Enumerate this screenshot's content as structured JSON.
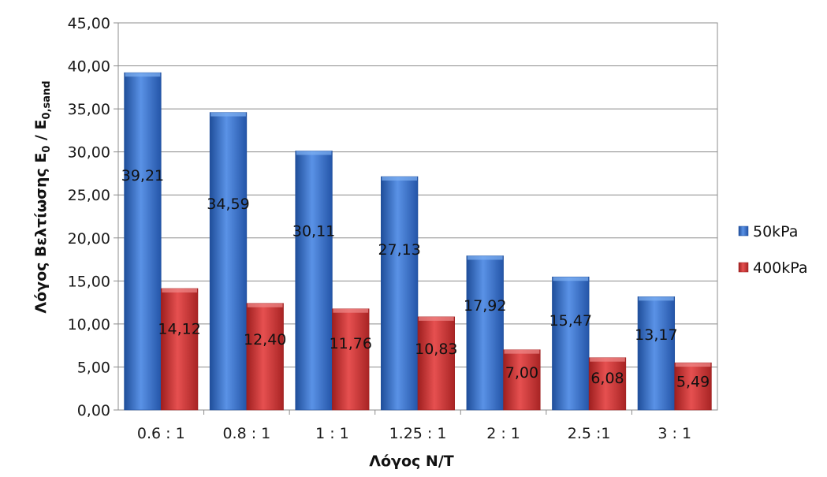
{
  "chart_data": {
    "type": "bar",
    "categories": [
      "0.6 : 1",
      "0.8 : 1",
      "1 : 1",
      "1.25 : 1",
      "2 : 1",
      "2.5 :1",
      "3 : 1"
    ],
    "series": [
      {
        "name": "50kPa",
        "values": [
          39.21,
          34.59,
          30.11,
          27.13,
          17.92,
          15.47,
          13.17
        ],
        "labels": [
          "39,21",
          "34,59",
          "30,11",
          "27,13",
          "17,92",
          "15,47",
          "13,17"
        ],
        "color": "#3a72c8"
      },
      {
        "name": "400kPa",
        "values": [
          14.12,
          12.4,
          11.76,
          10.83,
          7.0,
          6.08,
          5.49
        ],
        "labels": [
          "14,12",
          "12,40",
          "11,76",
          "10,83",
          "7,00",
          "6,08",
          "5,49"
        ],
        "color": "#c83232"
      }
    ],
    "ylim": [
      0,
      45
    ],
    "yticks": [
      "0,00",
      "5,00",
      "10,00",
      "15,00",
      "20,00",
      "25,00",
      "30,00",
      "35,00",
      "40,00",
      "45,00"
    ],
    "xlabel": "Λόγος N/T",
    "ylabel_main": "Λόγος Βελτίωσης E",
    "ylabel_sub1": "0",
    "ylabel_mid": " / E",
    "ylabel_sub2": "0,sand",
    "grid": true,
    "legend_position": "right"
  }
}
